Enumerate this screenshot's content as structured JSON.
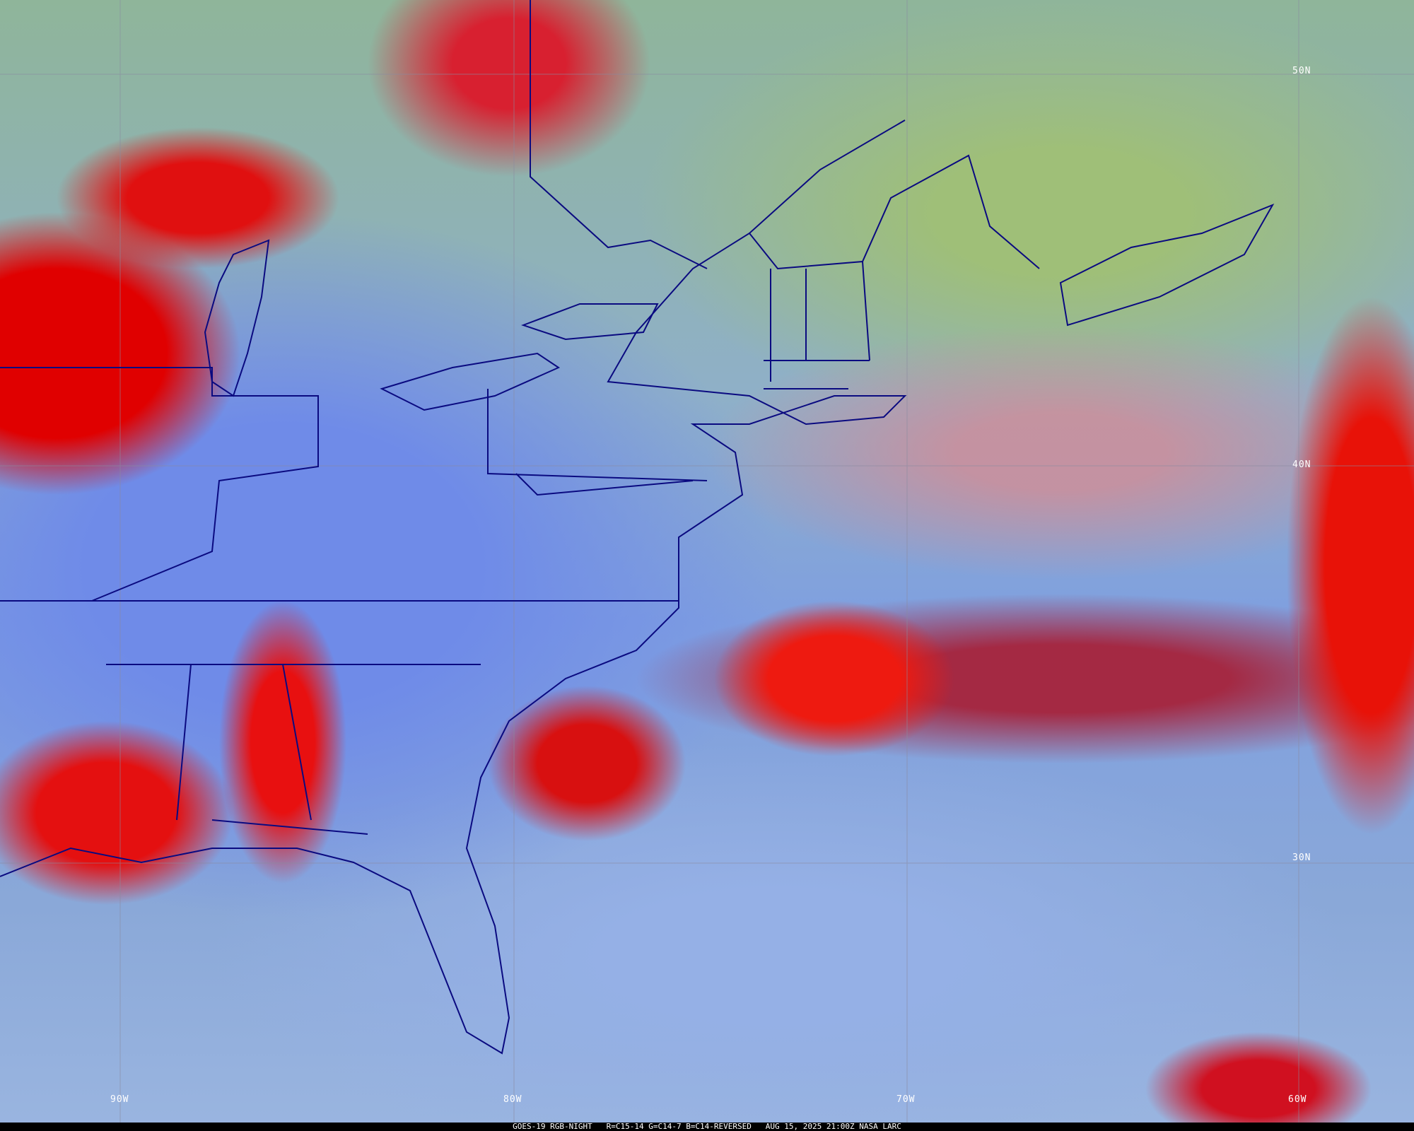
{
  "caption": "GOES-19 RGB-NIGHT   R=C15-14 G=C14-7 B=C14-REVERSED   AUG 15, 2025 21:00Z NASA LARC",
  "latitude_labels": [
    "50N",
    "40N",
    "30N"
  ],
  "longitude_labels": [
    "90W",
    "80W",
    "70W",
    "60W"
  ],
  "colors": {
    "boundaries": "#0a0a80",
    "grid": "#8a8aa0",
    "caption_bg": "#000000",
    "label": "#ffffff"
  }
}
